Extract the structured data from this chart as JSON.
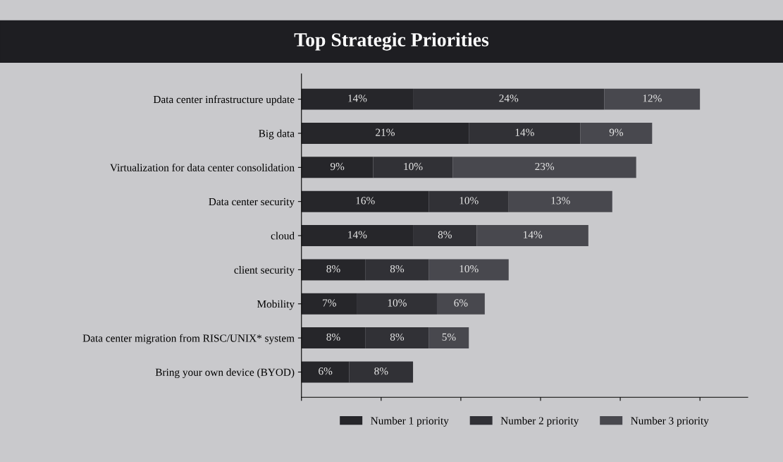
{
  "chart_data": {
    "type": "bar",
    "orientation": "horizontal",
    "stacked": true,
    "title": "Top Strategic Priorities",
    "categories": [
      "Data center infrastructure update",
      "Big data",
      "Virtualization for data center consolidation",
      "Data center security",
      "cloud",
      "client security",
      "Mobility",
      "Data center migration from RISC/UNIX* system",
      "Bring your own device (BYOD)"
    ],
    "series": [
      {
        "name": "Number 1 priority",
        "color": "#26262a",
        "values": [
          14,
          21,
          9,
          16,
          14,
          8,
          7,
          8,
          6
        ],
        "value_labels": [
          "14%",
          "21%",
          "9%",
          "16%",
          "14%",
          "8%",
          "7%",
          "8%",
          "6%"
        ]
      },
      {
        "name": "Number 2 priority",
        "color": "#313136",
        "values": [
          24,
          14,
          10,
          10,
          8,
          8,
          10,
          8,
          8
        ],
        "value_labels": [
          "24%",
          "14%",
          "10%",
          "10%",
          "8%",
          "8%",
          "10%",
          "8%",
          "8%"
        ]
      },
      {
        "name": "Number 3 priority",
        "color": "#48484e",
        "values": [
          12,
          9,
          23,
          13,
          14,
          10,
          6,
          5,
          null
        ],
        "value_labels": [
          "12%",
          "9%",
          "23%",
          "13%",
          "14%",
          "10%",
          "6%",
          "5%",
          null
        ]
      }
    ],
    "legend": "bottom",
    "grid": false,
    "tick_labels": "y"
  }
}
